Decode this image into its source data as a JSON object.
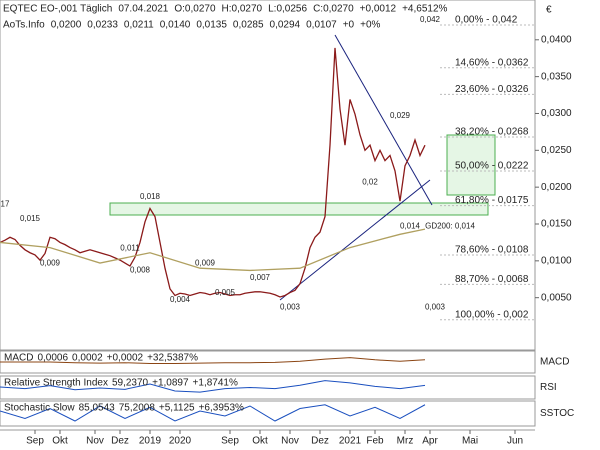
{
  "chart_data": {
    "type": "line",
    "currency": "€",
    "header": {
      "symbol": "EQTEC EO-,001 Täglich",
      "date": "07.04.2021",
      "items": [
        {
          "text": "O:0,0270",
          "color": "#2a9d2a"
        },
        {
          "text": "H:0,0270",
          "color": "#222222"
        },
        {
          "text": "L:0,0256",
          "color": "#222222"
        },
        {
          "text": "C:0,0270",
          "color": "#2a9d2a"
        },
        {
          "text": "+0,0012",
          "color": "#2a9d2a"
        },
        {
          "text": "+4,6512%",
          "color": "#2a9d2a"
        }
      ]
    },
    "indicator_line": {
      "title": "AoTs.Info",
      "items": [
        {
          "text": "0,0200",
          "color": "#2a9d2a"
        },
        {
          "text": "0,0233",
          "color": "#8a8a1a"
        },
        {
          "text": "0,0211",
          "color": "#1a237e"
        },
        {
          "text": "0,0140",
          "color": "#b0a060"
        },
        {
          "text": "0,0135",
          "color": "#999999"
        },
        {
          "text": "0,0285",
          "color": "#999999"
        },
        {
          "text": "0,0294",
          "color": "#1a237e"
        },
        {
          "text": "0,0107",
          "color": "#1a237e"
        },
        {
          "text": "+0",
          "color": "#2a9d2a"
        },
        {
          "text": "+0%",
          "color": "#2a9d2a"
        }
      ]
    },
    "xlim": [
      0,
      107
    ],
    "ylim": [
      -0.0021,
      0.0454
    ],
    "yticks": [
      {
        "value": 0.04,
        "label": "0,0400"
      },
      {
        "value": 0.035,
        "label": "0,0350"
      },
      {
        "value": 0.03,
        "label": "0,0300"
      },
      {
        "value": 0.025,
        "label": "0,0250"
      },
      {
        "value": 0.02,
        "label": "0,0200"
      },
      {
        "value": 0.015,
        "label": "0,0150"
      },
      {
        "value": 0.01,
        "label": "0,0100"
      },
      {
        "value": 0.005,
        "label": "0,0050"
      }
    ],
    "xticks": [
      {
        "value": 7,
        "label": "Sep"
      },
      {
        "value": 12,
        "label": "Okt"
      },
      {
        "value": 19,
        "label": "Nov"
      },
      {
        "value": 24,
        "label": "Dez"
      },
      {
        "value": 30,
        "label": "2019"
      },
      {
        "value": 36,
        "label": "2020"
      },
      {
        "value": 46,
        "label": "Sep"
      },
      {
        "value": 52,
        "label": "Okt"
      },
      {
        "value": 58,
        "label": "Nov"
      },
      {
        "value": 64,
        "label": "Dez"
      },
      {
        "value": 70,
        "label": "2021"
      },
      {
        "value": 75,
        "label": "Feb"
      },
      {
        "value": 81,
        "label": "Mrz"
      },
      {
        "value": 86,
        "label": "Apr"
      },
      {
        "value": 94,
        "label": "Mai"
      },
      {
        "value": 103,
        "label": "Jun"
      }
    ],
    "series": [
      {
        "name": "Kurs",
        "color": "#8b1a1a",
        "x": [
          0,
          1,
          2,
          3,
          4,
          5,
          6,
          7,
          8,
          9,
          10,
          11,
          12,
          13,
          14,
          15,
          16,
          17,
          18,
          19,
          20,
          21,
          22,
          23,
          24,
          25,
          26,
          27,
          28,
          29,
          30,
          31,
          32,
          33,
          34,
          35,
          36,
          37,
          38,
          39,
          40,
          41,
          42,
          43,
          44,
          45,
          46,
          47,
          48,
          49,
          50,
          51,
          52,
          53,
          54,
          55,
          56,
          57,
          58,
          59,
          60,
          61,
          62,
          63,
          64,
          65,
          66,
          67,
          68,
          69,
          70,
          71,
          72,
          73,
          74,
          75,
          76,
          77,
          78,
          79,
          80,
          81,
          82,
          83,
          84,
          85
        ],
        "values": [
          0.0125,
          0.0128,
          0.0132,
          0.0129,
          0.0121,
          0.0115,
          0.0111,
          0.0108,
          0.0101,
          0.011,
          0.0132,
          0.013,
          0.0125,
          0.0122,
          0.0118,
          0.0115,
          0.0111,
          0.0113,
          0.0115,
          0.0113,
          0.0111,
          0.0109,
          0.0107,
          0.0104,
          0.0101,
          0.0097,
          0.0093,
          0.0105,
          0.0125,
          0.0153,
          0.0171,
          0.016,
          0.0125,
          0.009,
          0.0062,
          0.0053,
          0.0056,
          0.0055,
          0.0053,
          0.0055,
          0.0057,
          0.0056,
          0.0054,
          0.0056,
          0.0057,
          0.0055,
          0.0053,
          0.0054,
          0.0054,
          0.0056,
          0.0057,
          0.0058,
          0.0058,
          0.0057,
          0.0056,
          0.0054,
          0.0051,
          0.0053,
          0.0057,
          0.006,
          0.0069,
          0.009,
          0.0118,
          0.0132,
          0.0139,
          0.016,
          0.0257,
          0.0389,
          0.0306,
          0.0257,
          0.0319,
          0.0299,
          0.0271,
          0.025,
          0.0257,
          0.0236,
          0.025,
          0.0236,
          0.0243,
          0.0222,
          0.0181,
          0.0229,
          0.0243,
          0.0264,
          0.0243,
          0.0257
        ]
      },
      {
        "name": "GD200",
        "color": "#b0a060",
        "x": [
          0,
          10,
          20,
          30,
          40,
          50,
          60,
          70,
          80,
          85
        ],
        "values": [
          0.0125,
          0.0118,
          0.0097,
          0.0111,
          0.009,
          0.0087,
          0.009,
          0.0118,
          0.0136,
          0.0143
        ]
      }
    ],
    "fibonacci": [
      {
        "value": 0.042,
        "label": "0,00% - 0,042"
      },
      {
        "value": 0.0362,
        "label": "14,60% - 0,0362"
      },
      {
        "value": 0.0326,
        "label": "23,60% - 0,0326"
      },
      {
        "value": 0.0268,
        "label": "38,20% - 0,0268"
      },
      {
        "value": 0.0222,
        "label": "50,00% - 0,0222"
      },
      {
        "value": 0.0175,
        "label": "61,80% - 0,0175"
      },
      {
        "value": 0.0108,
        "label": "78,60% - 0,0108"
      },
      {
        "value": 0.0068,
        "label": "88,70% - 0,0068"
      },
      {
        "value": 0.002,
        "label": "100,00% - 0,002"
      }
    ],
    "annotations": [
      {
        "x": 86,
        "value": 0.042,
        "label": "0,042"
      },
      {
        "x": 80,
        "value": 0.029,
        "label": "0,029"
      },
      {
        "x": 30,
        "value": 0.018,
        "label": "0,018"
      },
      {
        "x": 1,
        "value": 0.017,
        "label": "17"
      },
      {
        "x": 6,
        "value": 0.015,
        "label": "0,015"
      },
      {
        "x": 26,
        "value": 0.011,
        "label": "0,011"
      },
      {
        "x": 28,
        "value": 0.008,
        "label": "0,008"
      },
      {
        "x": 10,
        "value": 0.009,
        "label": "0,009"
      },
      {
        "x": 41,
        "value": 0.009,
        "label": "0,009"
      },
      {
        "x": 52,
        "value": 0.007,
        "label": "0,007"
      },
      {
        "x": 45,
        "value": 0.005,
        "label": "0,005"
      },
      {
        "x": 36,
        "value": 0.004,
        "label": "0,004"
      },
      {
        "x": 58,
        "value": 0.003,
        "label": "0,003"
      },
      {
        "x": 74,
        "value": 0.02,
        "label": "0,02"
      },
      {
        "x": 82,
        "value": 0.014,
        "label": "0,014"
      },
      {
        "x": 87,
        "value": 0.003,
        "label": "0,003"
      },
      {
        "x": 90,
        "value": 0.014,
        "label": "GD200: 0,014"
      }
    ],
    "panels": [
      {
        "title": "MACD",
        "side_label": "MACD",
        "items": [
          {
            "text": "0,0006",
            "color": "#8a8a1a"
          },
          {
            "text": "0,0002",
            "color": "#8b1a8b"
          },
          {
            "text": "+0,0002",
            "color": "#2a9d2a"
          },
          {
            "text": "+32,5387%",
            "color": "#2a9d2a"
          }
        ],
        "ylim": [
          -0.003,
          0.003
        ],
        "color": "#8b4513",
        "x": [
          0,
          5,
          10,
          15,
          20,
          25,
          30,
          35,
          40,
          45,
          50,
          55,
          60,
          65,
          70,
          75,
          80,
          85
        ],
        "values": [
          0,
          0,
          0,
          -0.0002,
          -0.0003,
          -0.0002,
          -0.0004,
          -0.0004,
          -0.0003,
          -0.0002,
          -0.0002,
          -0.0001,
          0.0002,
          0.0008,
          0.0012,
          0.0006,
          0.0002,
          0.0006
        ]
      },
      {
        "title": "Relative Strength Index",
        "side_label": "RSI",
        "items": [
          {
            "text": "59,2370",
            "color": "#1a4fbf"
          },
          {
            "text": "+1,0897",
            "color": "#2a9d2a"
          },
          {
            "text": "+1,8741%",
            "color": "#2a9d2a"
          }
        ],
        "ylim": [
          0,
          100
        ],
        "color": "#1a4fbf",
        "x": [
          0,
          5,
          10,
          15,
          20,
          25,
          30,
          35,
          40,
          45,
          50,
          55,
          60,
          65,
          70,
          75,
          80,
          85
        ],
        "values": [
          52,
          45,
          58,
          40,
          48,
          42,
          65,
          35,
          30,
          45,
          50,
          45,
          60,
          80,
          70,
          55,
          45,
          59
        ]
      },
      {
        "title": "Stochastic Slow",
        "side_label": "SSTOC",
        "items": [
          {
            "text": "85,0543",
            "color": "#1a4fbf"
          },
          {
            "text": "75,2008",
            "color": "#8b1a8b"
          },
          {
            "text": "+5,1125",
            "color": "#2a9d2a"
          },
          {
            "text": "+6,3953%",
            "color": "#2a9d2a"
          }
        ],
        "ylim": [
          0,
          100
        ],
        "color": "#1a4fbf",
        "x": [
          0,
          5,
          10,
          15,
          20,
          25,
          30,
          35,
          40,
          45,
          50,
          55,
          60,
          65,
          70,
          75,
          80,
          85
        ],
        "values": [
          60,
          30,
          70,
          20,
          80,
          30,
          75,
          20,
          60,
          40,
          80,
          20,
          70,
          85,
          40,
          75,
          30,
          85
        ]
      }
    ]
  }
}
